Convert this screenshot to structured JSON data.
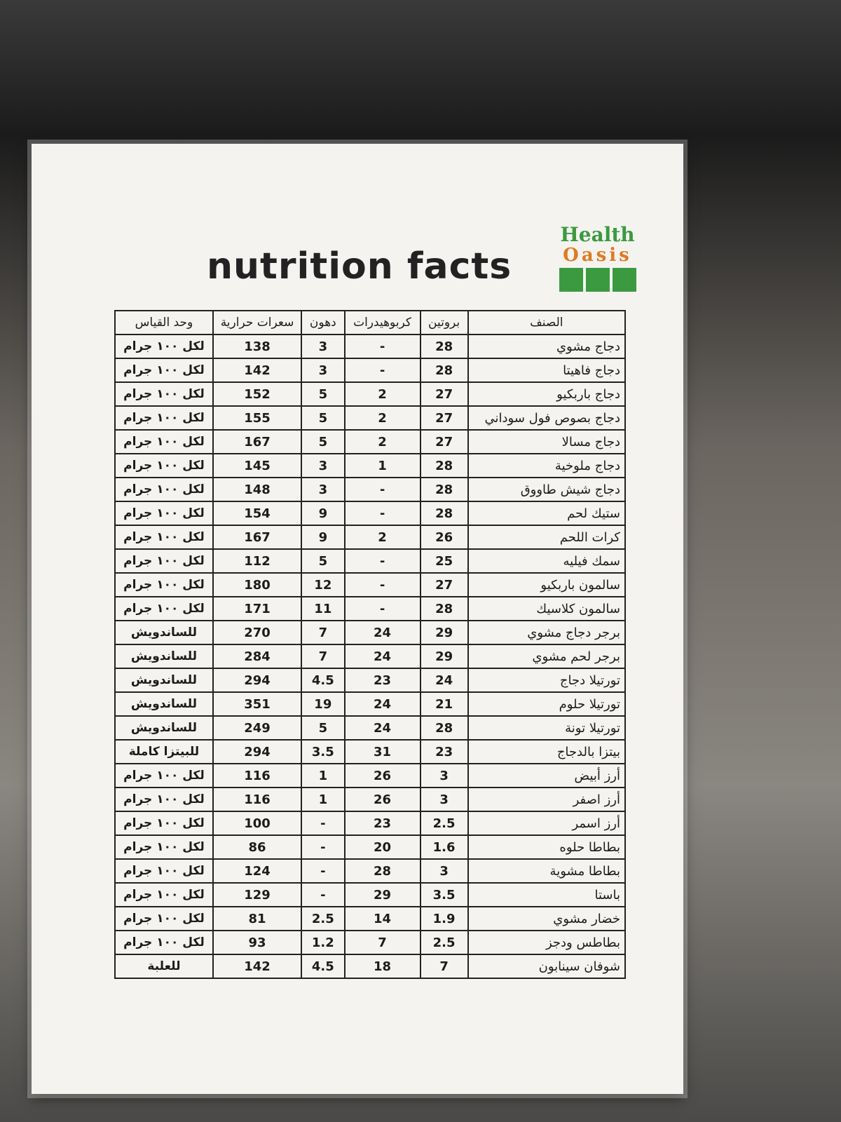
{
  "logo": {
    "line1": "Health",
    "line2": "Oasis"
  },
  "title": "nutrition facts",
  "table": {
    "header": [
      "الصنف",
      "بروتين",
      "كربوهيدرات",
      "دهون",
      "سعرات حرارية",
      "وحد القياس"
    ],
    "rows": [
      [
        "دجاج مشوي",
        "28",
        "-",
        "3",
        "138",
        "لكل ١٠٠ جرام"
      ],
      [
        "دجاج فاهيتا",
        "28",
        "-",
        "3",
        "142",
        "لكل ١٠٠ جرام"
      ],
      [
        "دجاج باربكيو",
        "27",
        "2",
        "5",
        "152",
        "لكل ١٠٠ جرام"
      ],
      [
        "دجاج بصوص فول سوداني",
        "27",
        "2",
        "5",
        "155",
        "لكل ١٠٠ جرام"
      ],
      [
        "دجاج مسالا",
        "27",
        "2",
        "5",
        "167",
        "لكل ١٠٠ جرام"
      ],
      [
        "دجاج ملوخية",
        "28",
        "1",
        "3",
        "145",
        "لكل ١٠٠ جرام"
      ],
      [
        "دجاج شيش طاووق",
        "28",
        "-",
        "3",
        "148",
        "لكل ١٠٠ جرام"
      ],
      [
        "ستيك لحم",
        "28",
        "-",
        "9",
        "154",
        "لكل ١٠٠ جرام"
      ],
      [
        "كرات اللحم",
        "26",
        "2",
        "9",
        "167",
        "لكل ١٠٠ جرام"
      ],
      [
        "سمك فيليه",
        "25",
        "-",
        "5",
        "112",
        "لكل ١٠٠ جرام"
      ],
      [
        "سالمون باربكيو",
        "27",
        "-",
        "12",
        "180",
        "لكل ١٠٠ جرام"
      ],
      [
        "سالمون كلاسيك",
        "28",
        "-",
        "11",
        "171",
        "لكل ١٠٠ جرام"
      ],
      [
        "برجر دجاج مشوي",
        "29",
        "24",
        "7",
        "270",
        "للساندويش"
      ],
      [
        "برجر لحم مشوي",
        "29",
        "24",
        "7",
        "284",
        "للساندويش"
      ],
      [
        "تورتيلا دجاج",
        "24",
        "23",
        "4.5",
        "294",
        "للساندويش"
      ],
      [
        "تورتيلا حلوم",
        "21",
        "24",
        "19",
        "351",
        "للساندويش"
      ],
      [
        "تورتيلا تونة",
        "28",
        "24",
        "5",
        "249",
        "للساندويش"
      ],
      [
        "بيتزا بالدجاج",
        "23",
        "31",
        "3.5",
        "294",
        "للبيتزا كاملة"
      ],
      [
        "أرز أبيض",
        "3",
        "26",
        "1",
        "116",
        "لكل ١٠٠ جرام"
      ],
      [
        "أرز اصفر",
        "3",
        "26",
        "1",
        "116",
        "لكل ١٠٠ جرام"
      ],
      [
        "أرز اسمر",
        "2.5",
        "23",
        "-",
        "100",
        "لكل ١٠٠ جرام"
      ],
      [
        "بطاطا حلوه",
        "1.6",
        "20",
        "-",
        "86",
        "لكل ١٠٠ جرام"
      ],
      [
        "بطاطا مشوية",
        "3",
        "28",
        "-",
        "124",
        "لكل ١٠٠ جرام"
      ],
      [
        "باستا",
        "3.5",
        "29",
        "-",
        "129",
        "لكل ١٠٠ جرام"
      ],
      [
        "خضار مشوي",
        "1.9",
        "14",
        "2.5",
        "81",
        "لكل ١٠٠ جرام"
      ],
      [
        "بطاطس ودجز",
        "2.5",
        "7",
        "1.2",
        "93",
        "لكل ١٠٠ جرام"
      ],
      [
        "شوفان سينابون",
        "7",
        "18",
        "4.5",
        "142",
        "للعلبة"
      ]
    ]
  }
}
